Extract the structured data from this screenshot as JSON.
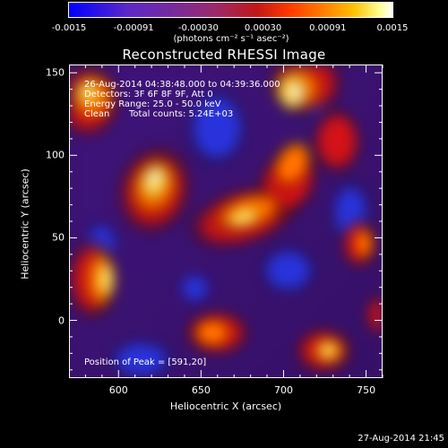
{
  "colorbar": {
    "ticks": [
      "-0.0015",
      "-0.00091",
      "-0.00030",
      "0.00030",
      "0.00091",
      "0.0015"
    ],
    "range": [
      -0.0015,
      0.0015
    ],
    "unit": "(photons cm⁻² s⁻¹ asec⁻²)",
    "colors": [
      "#0000ff",
      "#7a2a9a",
      "#c01818",
      "#ff7a00",
      "#ffc000",
      "#ffffff"
    ]
  },
  "chart_data": {
    "type": "heatmap",
    "title": "Reconstructed RHESSI Image",
    "xlabel": "Heliocentric X (arcsec)",
    "ylabel": "Heliocentric Y (arcsec)",
    "xlim": [
      570,
      760
    ],
    "ylim": [
      -35,
      155
    ],
    "xticks": [
      600,
      650,
      700,
      750
    ],
    "yticks": [
      0,
      50,
      100,
      150
    ],
    "annotations": {
      "time": "26-Aug-2014 04:38:48.000 to 04:39:36.000",
      "detectors": "Detectors: 3F 6F 8F 9F, Att 0",
      "energy": "Energy Range: 25.0 - 50.0 keV",
      "method": "Clean",
      "counts": "Total counts: 5.24E+03",
      "peak": "Position of Peak = [591,20]"
    },
    "grid": false
  },
  "footer": {
    "timestamp": "27-Aug-2014 21:45"
  }
}
